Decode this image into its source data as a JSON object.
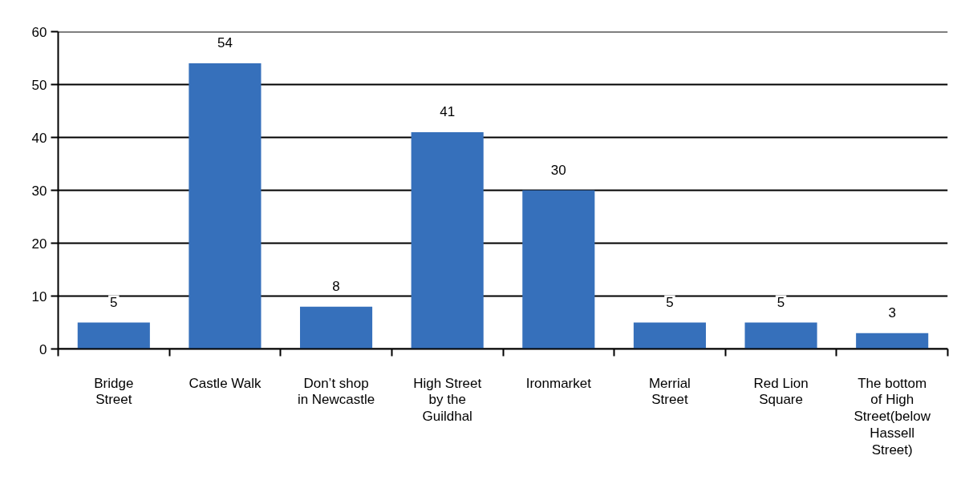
{
  "chart_data": {
    "type": "bar",
    "categories": [
      "Bridge Street",
      "Castle Walk",
      "Don’t shop in Newcastle",
      "High Street by the Guildhal",
      "Ironmarket",
      "Merrial Street",
      "Red Lion Square",
      "The bottom of High Street(below Hassell Street)"
    ],
    "values": [
      5,
      54,
      8,
      41,
      30,
      5,
      5,
      3
    ],
    "color": "#3670bb",
    "ylim": [
      0,
      60
    ],
    "yticks": [
      0,
      10,
      20,
      30,
      40,
      50,
      60
    ],
    "grid": "y",
    "data_labels": true
  }
}
